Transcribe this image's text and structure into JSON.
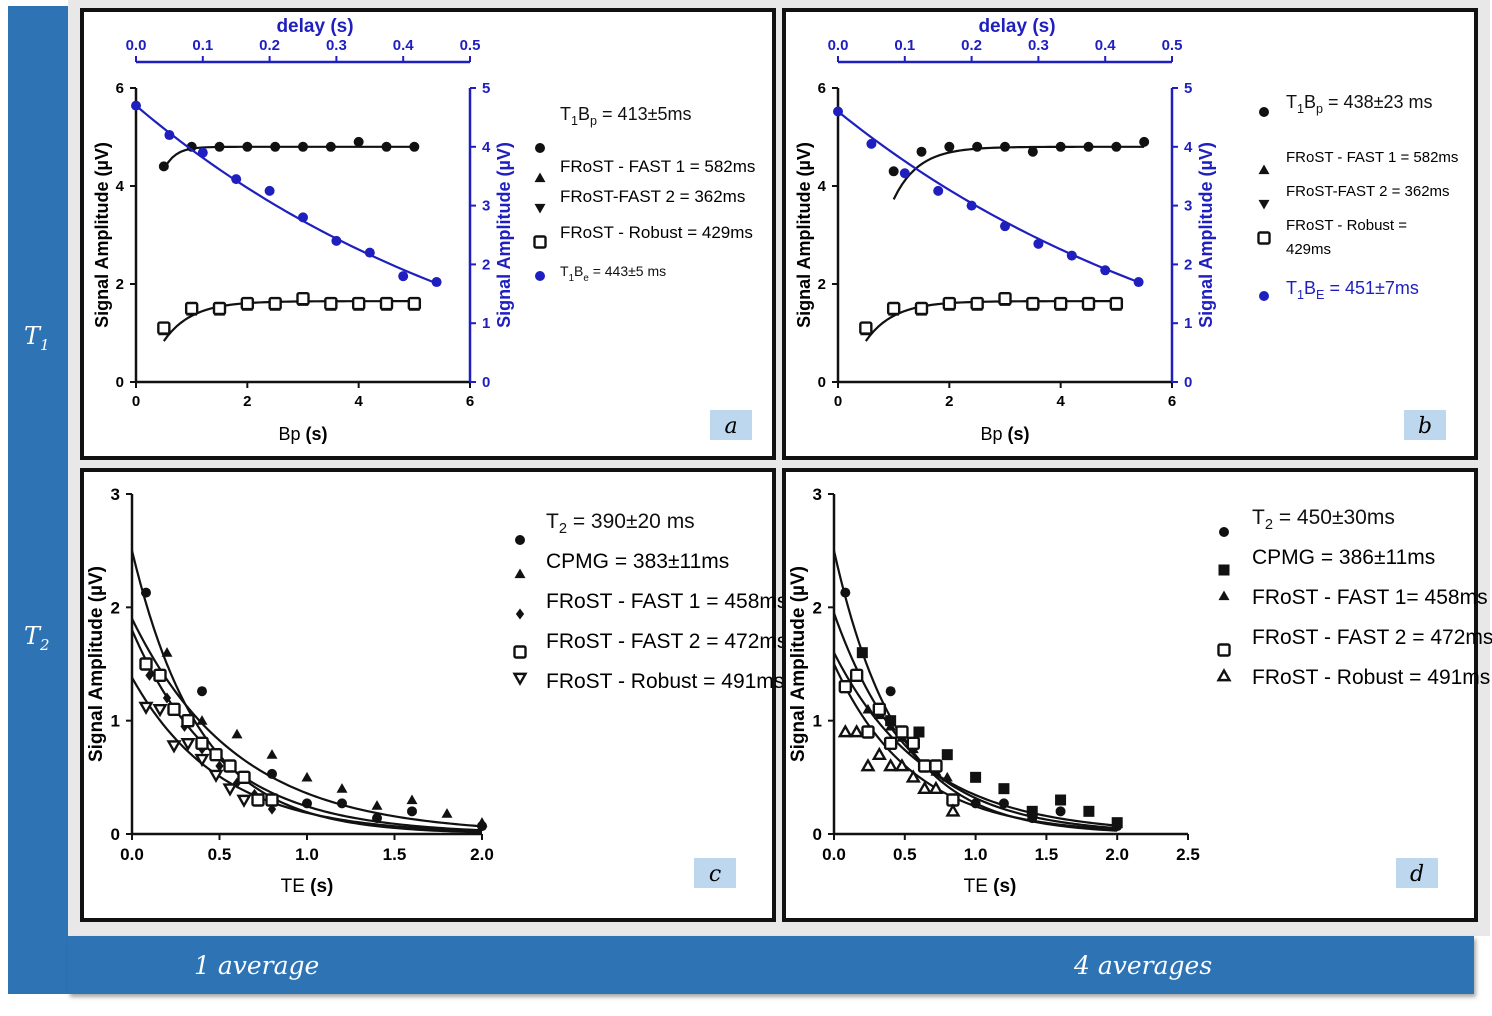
{
  "rows": {
    "t1": "T",
    "t1_sub": "1",
    "t2": "T",
    "t2_sub": "2"
  },
  "cols": {
    "left": "1 average",
    "right": "4 averages"
  },
  "colors": {
    "frame": "#2e74b5",
    "blue_series": "#1f1fbf",
    "black_series": "#111111"
  },
  "chart_data": [
    {
      "panel": "a",
      "type": "scatter",
      "xlabel_main": "Bp",
      "xlabel_unit": "(s)",
      "x2label": "delay (s)",
      "ylabel": "Signal Amplitude (µV)",
      "y2label": "Signal Amplitude (µV)",
      "xlim": [
        0,
        6
      ],
      "ylim": [
        0,
        6
      ],
      "x2lim": [
        0.0,
        0.5
      ],
      "y2lim": [
        0,
        5
      ],
      "xticks": [
        "0",
        "2",
        "4",
        "6"
      ],
      "yticks": [
        "0",
        "2",
        "4",
        "6"
      ],
      "x2ticks": [
        "0.0",
        "0.1",
        "0.2",
        "0.3",
        "0.4",
        "0.5"
      ],
      "y2ticks": [
        "0",
        "1",
        "2",
        "3",
        "4",
        "5"
      ],
      "legend": [
        {
          "marker": "circle",
          "text": "T1Bp = 413±5ms",
          "main": "T",
          "sub": "1",
          "main2": "B",
          "sub2": "p",
          "rest": " = 413±5ms"
        },
        {
          "marker": "triangle-up",
          "text": "FRoST - FAST 1 = 582ms"
        },
        {
          "marker": "triangle-down",
          "text": "FRoST-FAST 2 = 362ms"
        },
        {
          "marker": "square-open",
          "text": "FRoST - Robust = 429ms"
        },
        {
          "marker": "circle-blue",
          "text": "T1Be = 443±5 ms",
          "main": "T",
          "sub": "1",
          "main2": "B",
          "sub2": "e",
          "rest": " = 443±5 ms"
        }
      ],
      "series": [
        {
          "name": "T1Bp",
          "axis": "left",
          "color": "#111111",
          "marker": "circle",
          "x": [
            0.5,
            1.0,
            1.5,
            2.0,
            2.5,
            3.0,
            3.5,
            4.0,
            4.5,
            5.0
          ],
          "y": [
            4.4,
            4.8,
            4.8,
            4.8,
            4.8,
            4.8,
            4.8,
            4.9,
            4.8,
            4.8
          ],
          "fit": {
            "a": 4.8,
            "b": 0.6,
            "tau": 0.2
          }
        },
        {
          "name": "FRoST",
          "axis": "left",
          "color": "#111111",
          "marker": "square-open",
          "x": [
            0.5,
            1.0,
            1.5,
            2.0,
            2.5,
            3.0,
            3.5,
            4.0,
            4.5,
            5.0
          ],
          "y": [
            1.1,
            1.5,
            1.5,
            1.6,
            1.6,
            1.7,
            1.6,
            1.6,
            1.6,
            1.6
          ],
          "fit": {
            "a": 1.65,
            "b": 0.9,
            "tau": 0.5
          }
        },
        {
          "name": "T1Be",
          "axis": "right",
          "color": "#1f1fbf",
          "marker": "circle",
          "x2": [
            0.0,
            0.05,
            0.1,
            0.15,
            0.2,
            0.25,
            0.3,
            0.35,
            0.4,
            0.45
          ],
          "y": [
            4.7,
            4.2,
            3.9,
            3.45,
            3.25,
            2.8,
            2.4,
            2.2,
            1.8,
            1.7
          ],
          "fit": {
            "a": -0.9,
            "b": 5.6,
            "tau": 0.58
          }
        }
      ],
      "tag": "a"
    },
    {
      "panel": "b",
      "type": "scatter",
      "xlabel_main": "Bp",
      "xlabel_unit": "(s)",
      "x2label": "delay (s)",
      "ylabel": "Signal Amplitude (µV)",
      "y2label": "Signal Amplitude (µV)",
      "xlim": [
        0,
        6
      ],
      "ylim": [
        0,
        6
      ],
      "x2lim": [
        0.0,
        0.5
      ],
      "y2lim": [
        0,
        5
      ],
      "xticks": [
        "0",
        "2",
        "4",
        "6"
      ],
      "yticks": [
        "0",
        "2",
        "4",
        "6"
      ],
      "x2ticks": [
        "0.0",
        "0.1",
        "0.2",
        "0.3",
        "0.4",
        "0.5"
      ],
      "y2ticks": [
        "0",
        "1",
        "2",
        "3",
        "4",
        "5"
      ],
      "legend": [
        {
          "marker": "circle",
          "text": "T1Bp = 438±23 ms",
          "main": "T",
          "sub": "1",
          "main2": "B",
          "sub2": "p",
          "rest": " = 438±23 ms"
        },
        {
          "marker": "triangle-up",
          "text": "FRoST - FAST 1 = 582ms"
        },
        {
          "marker": "triangle-down",
          "text": "FRoST-FAST 2 = 362ms"
        },
        {
          "marker": "square-open",
          "text": "FRoST - Robust = 429ms",
          "line1": "FRoST - Robust =",
          "line2": "429ms"
        },
        {
          "marker": "circle-blue",
          "text": "T1BE = 451±7ms",
          "main": "T",
          "sub": "1",
          "main2": "B",
          "sub2": "E",
          "rest": " = 451±7ms"
        }
      ],
      "series": [
        {
          "name": "T1Bp",
          "axis": "left",
          "color": "#111111",
          "marker": "circle",
          "x": [
            1.0,
            1.5,
            2.0,
            2.5,
            3.0,
            3.5,
            4.0,
            4.5,
            5.0,
            5.5
          ],
          "y": [
            4.3,
            4.7,
            4.8,
            4.8,
            4.8,
            4.7,
            4.8,
            4.8,
            4.8,
            4.9
          ],
          "fit": {
            "a": 4.8,
            "b": 1.2,
            "tau": 0.45
          }
        },
        {
          "name": "FRoST",
          "axis": "left",
          "color": "#111111",
          "marker": "square-open",
          "x": [
            0.5,
            1.0,
            1.5,
            2.0,
            2.5,
            3.0,
            3.5,
            4.0,
            4.5,
            5.0
          ],
          "y": [
            1.1,
            1.5,
            1.5,
            1.6,
            1.6,
            1.7,
            1.6,
            1.6,
            1.6,
            1.6
          ],
          "fit": {
            "a": 1.65,
            "b": 0.9,
            "tau": 0.5
          }
        },
        {
          "name": "T1BE",
          "axis": "right",
          "color": "#1f1fbf",
          "marker": "circle",
          "x2": [
            0.0,
            0.05,
            0.1,
            0.15,
            0.2,
            0.25,
            0.3,
            0.35,
            0.4,
            0.45
          ],
          "y": [
            4.6,
            4.05,
            3.55,
            3.25,
            3.0,
            2.65,
            2.35,
            2.15,
            1.9,
            1.7
          ],
          "fit": {
            "a": -0.9,
            "b": 5.5,
            "tau": 0.6
          }
        }
      ],
      "tag": "b"
    },
    {
      "panel": "c",
      "type": "scatter",
      "xlabel_main": "TE",
      "xlabel_unit": "(s)",
      "ylabel": "Signal Amplitude (µV)",
      "xlim": [
        0,
        2.0
      ],
      "ylim": [
        0,
        3
      ],
      "xticks": [
        "0.0",
        "0.5",
        "1.0",
        "1.5",
        "2.0"
      ],
      "yticks": [
        "0",
        "1",
        "2",
        "3"
      ],
      "legend": [
        {
          "marker": "circle",
          "text": "T2 = 390±20 ms",
          "main": "T",
          "sub": "2",
          "rest": " = 390±20 ms"
        },
        {
          "marker": "triangle-up",
          "text": "CPMG = 383±11ms"
        },
        {
          "marker": "diamond",
          "text": "FRoST - FAST 1 = 458ms"
        },
        {
          "marker": "square-open",
          "text": "FRoST - FAST 2 = 472ms"
        },
        {
          "marker": "triangle-down-open",
          "text": "FRoST - Robust = 491ms"
        }
      ],
      "series": [
        {
          "name": "T2",
          "marker": "circle",
          "x": [
            0.08,
            0.4,
            0.8,
            1.0,
            1.2,
            1.4,
            1.6,
            2.0
          ],
          "y": [
            2.13,
            1.26,
            0.53,
            0.27,
            0.27,
            0.14,
            0.2,
            0.07
          ]
        },
        {
          "name": "CPMG",
          "marker": "triangle-up",
          "x": [
            0.2,
            0.4,
            0.6,
            0.8,
            1.0,
            1.2,
            1.4,
            1.6,
            1.8,
            2.0
          ],
          "y": [
            1.6,
            1.0,
            0.88,
            0.7,
            0.5,
            0.4,
            0.25,
            0.3,
            0.18,
            0.1
          ]
        },
        {
          "name": "FRoST - FAST 1",
          "marker": "diamond",
          "x": [
            0.1,
            0.2,
            0.3,
            0.4,
            0.5,
            0.6,
            0.7,
            0.8
          ],
          "y": [
            1.4,
            1.2,
            0.95,
            0.75,
            0.6,
            0.45,
            0.35,
            0.22
          ]
        },
        {
          "name": "FRoST - FAST 2",
          "marker": "square-open",
          "x": [
            0.08,
            0.16,
            0.24,
            0.32,
            0.4,
            0.48,
            0.56,
            0.64,
            0.72,
            0.8
          ],
          "y": [
            1.5,
            1.4,
            1.1,
            1.0,
            0.8,
            0.7,
            0.6,
            0.5,
            0.3,
            0.3
          ]
        },
        {
          "name": "FRoST - Robust",
          "marker": "triangle-down-open",
          "x": [
            0.08,
            0.16,
            0.24,
            0.32,
            0.4,
            0.48,
            0.56,
            0.64
          ],
          "y": [
            1.12,
            1.1,
            0.78,
            0.8,
            0.66,
            0.52,
            0.4,
            0.3
          ]
        }
      ],
      "fits": [
        {
          "a": 2.5,
          "tau": 0.39
        },
        {
          "a": 1.9,
          "tau": 0.6
        },
        {
          "a": 1.8,
          "tau": 0.5
        },
        {
          "a": 1.38,
          "tau": 0.5
        }
      ],
      "tag": "c"
    },
    {
      "panel": "d",
      "type": "scatter",
      "xlabel_main": "TE",
      "xlabel_unit": "(s)",
      "ylabel": "Signal Amplitude (µV)",
      "xlim": [
        0,
        2.5
      ],
      "ylim": [
        0,
        3
      ],
      "xticks": [
        "0.0",
        "0.5",
        "1.0",
        "1.5",
        "2.0",
        "2.5"
      ],
      "yticks": [
        "0",
        "1",
        "2",
        "3"
      ],
      "legend": [
        {
          "marker": "circle",
          "text": "T2 = 450±30ms",
          "main": "T",
          "sub": "2",
          "rest": " = 450±30ms"
        },
        {
          "marker": "square",
          "text": "CPMG = 386±11ms"
        },
        {
          "marker": "triangle-up",
          "text": "FRoST - FAST 1= 458ms"
        },
        {
          "marker": "square-open",
          "text": "FRoST - FAST 2 = 472ms"
        },
        {
          "marker": "triangle-up-open",
          "text": "FRoST - Robust = 491ms"
        }
      ],
      "series": [
        {
          "name": "T2",
          "marker": "circle",
          "x": [
            0.08,
            0.4,
            1.0,
            1.2,
            1.4,
            1.6,
            2.0
          ],
          "y": [
            2.13,
            1.26,
            0.27,
            0.27,
            0.14,
            0.2,
            0.07
          ]
        },
        {
          "name": "CPMG",
          "marker": "square",
          "x": [
            0.2,
            0.4,
            0.6,
            0.8,
            1.0,
            1.2,
            1.4,
            1.6,
            1.8,
            2.0
          ],
          "y": [
            1.6,
            1.0,
            0.9,
            0.7,
            0.5,
            0.4,
            0.2,
            0.3,
            0.2,
            0.1
          ]
        },
        {
          "name": "FRoST - FAST 1",
          "marker": "triangle-up",
          "x": [
            0.24,
            0.32,
            0.4,
            0.48,
            0.56,
            0.64,
            0.72,
            0.8
          ],
          "y": [
            1.1,
            1.05,
            0.95,
            0.85,
            0.75,
            0.6,
            0.55,
            0.5
          ]
        },
        {
          "name": "FRoST - FAST 2",
          "marker": "square-open",
          "x": [
            0.08,
            0.16,
            0.24,
            0.32,
            0.4,
            0.48,
            0.56,
            0.64,
            0.72,
            0.84
          ],
          "y": [
            1.3,
            1.4,
            0.9,
            1.1,
            0.8,
            0.9,
            0.8,
            0.6,
            0.6,
            0.3
          ]
        },
        {
          "name": "FRoST - Robust",
          "marker": "triangle-up-open",
          "x": [
            0.08,
            0.16,
            0.24,
            0.32,
            0.4,
            0.48,
            0.56,
            0.64,
            0.72,
            0.84
          ],
          "y": [
            0.9,
            0.9,
            0.6,
            0.7,
            0.6,
            0.6,
            0.5,
            0.4,
            0.4,
            0.2
          ]
        }
      ],
      "fits": [
        {
          "a": 2.5,
          "tau": 0.45
        },
        {
          "a": 1.95,
          "tau": 0.55
        },
        {
          "a": 1.6,
          "tau": 0.65
        },
        {
          "a": 1.5,
          "tau": 0.55
        }
      ],
      "tag": "d"
    }
  ]
}
